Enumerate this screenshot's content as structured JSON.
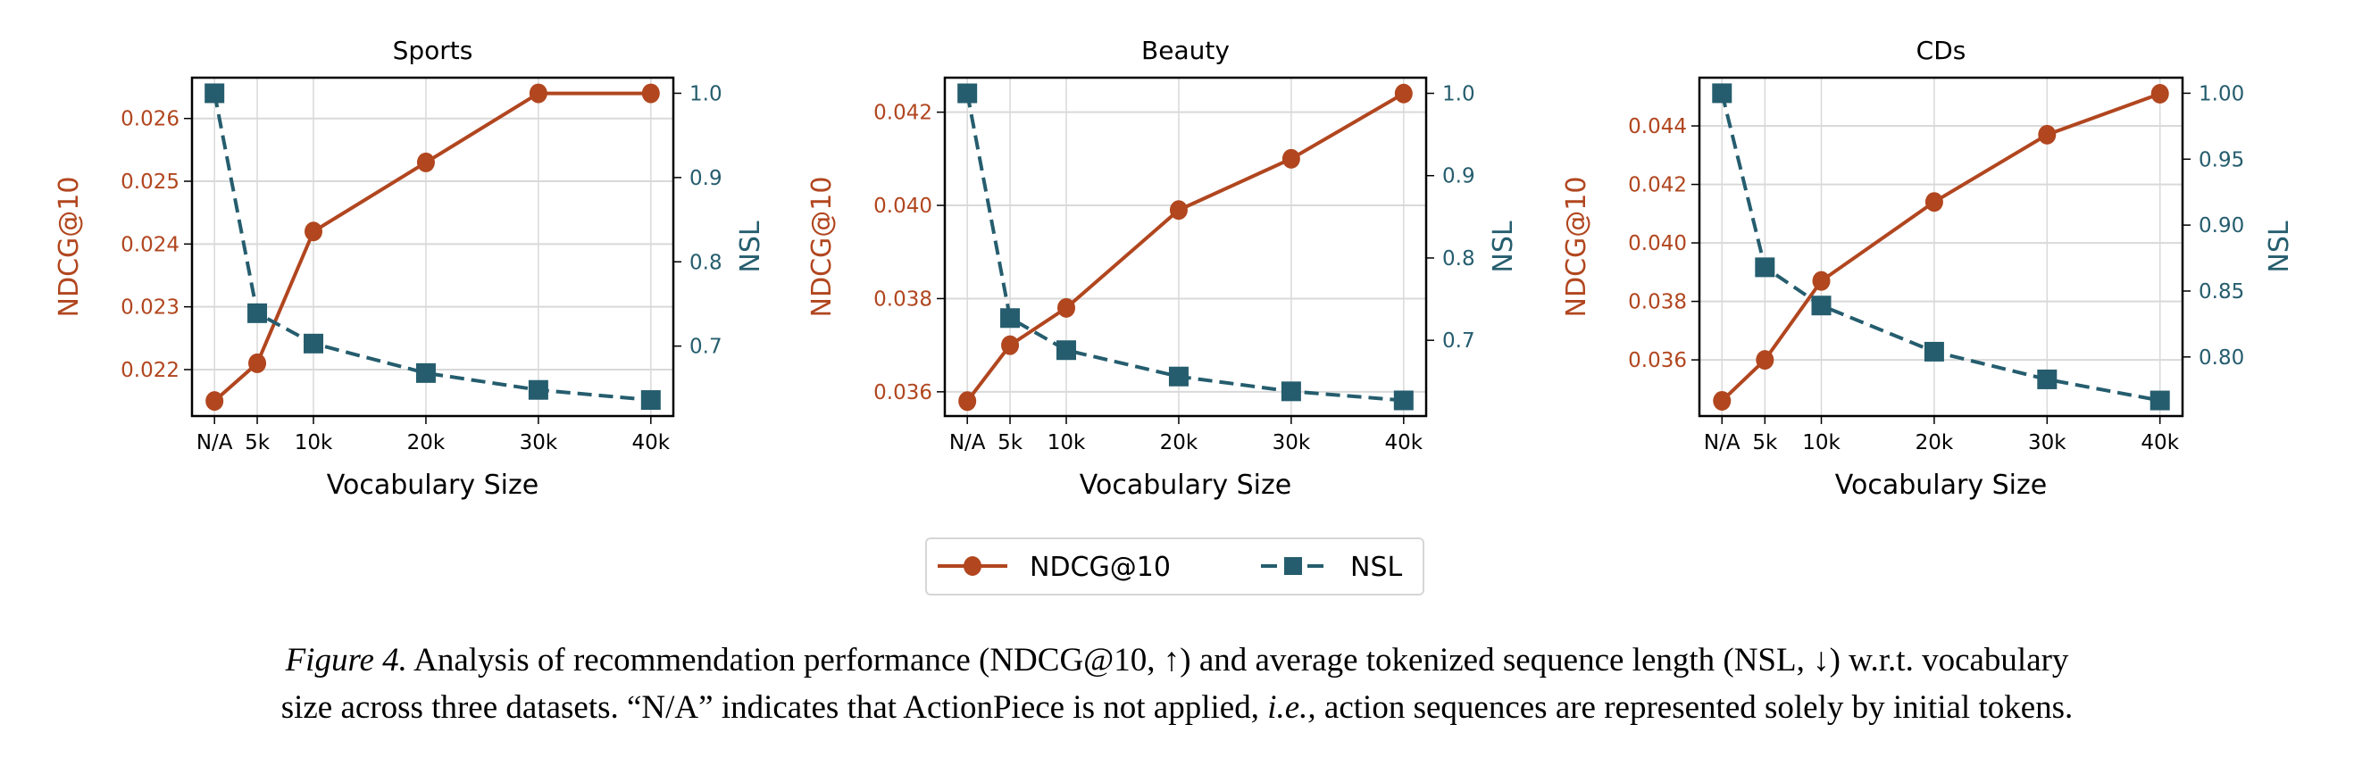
{
  "colors": {
    "ndcg": "#b1461f",
    "nsl": "#255d6e",
    "grid": "#d9d9d9"
  },
  "legend": {
    "ndcg_label": "NDCG@10",
    "nsl_label": "NSL"
  },
  "caption": {
    "figure_label": "Figure 4.",
    "line1": "Analysis of recommendation performance (NDCG@10, ↑) and average tokenized sequence length (NSL, ↓) w.r.t. vocabulary",
    "line2_a": "size across three datasets. “N/A” indicates that ActionPiece is not applied,",
    "line2_ie": "i.e.,",
    "line2_b": "action sequences are represented solely by initial tokens."
  },
  "chart_data": [
    {
      "type": "line",
      "title": "Sports",
      "xlabel": "Vocabulary Size",
      "ylabel": "NDCG@10",
      "y2label": "NSL",
      "categories": [
        "N/A",
        "5k",
        "10k",
        "20k",
        "30k",
        "40k"
      ],
      "x": [
        1.2,
        5,
        10,
        20,
        30,
        40
      ],
      "xlim": [
        -0.8,
        42
      ],
      "ylim": [
        0.02126,
        0.02665
      ],
      "y2lim": [
        0.617,
        1.0185
      ],
      "yticks": [
        0.022,
        0.023,
        0.024,
        0.025,
        0.026
      ],
      "yticklabels": [
        "0.022",
        "0.023",
        "0.024",
        "0.025",
        "0.026"
      ],
      "y2ticks": [
        0.7,
        0.8,
        0.9,
        1.0
      ],
      "y2ticklabels": [
        "0.7",
        "0.8",
        "0.9",
        "1.0"
      ],
      "series": [
        {
          "name": "NDCG@10",
          "axis": "left",
          "values": [
            0.0215,
            0.0221,
            0.0242,
            0.0253,
            0.0264,
            0.0264
          ]
        },
        {
          "name": "NSL",
          "axis": "right",
          "values": [
            1.0,
            0.739,
            0.703,
            0.668,
            0.648,
            0.636
          ]
        }
      ],
      "grid": true
    },
    {
      "type": "line",
      "title": "Beauty",
      "xlabel": "Vocabulary Size",
      "ylabel": "NDCG@10",
      "y2label": "NSL",
      "categories": [
        "N/A",
        "5k",
        "10k",
        "20k",
        "30k",
        "40k"
      ],
      "x": [
        1.2,
        5,
        10,
        20,
        30,
        40
      ],
      "xlim": [
        -0.8,
        42
      ],
      "ylim": [
        0.03548,
        0.04274
      ],
      "y2lim": [
        0.608,
        1.019
      ],
      "yticks": [
        0.036,
        0.038,
        0.04,
        0.042
      ],
      "yticklabels": [
        "0.036",
        "0.038",
        "0.040",
        "0.042"
      ],
      "y2ticks": [
        0.7,
        0.8,
        0.9,
        1.0
      ],
      "y2ticklabels": [
        "0.7",
        "0.8",
        "0.9",
        "1.0"
      ],
      "series": [
        {
          "name": "NDCG@10",
          "axis": "left",
          "values": [
            0.0358,
            0.037,
            0.0378,
            0.0399,
            0.041,
            0.0424
          ]
        },
        {
          "name": "NSL",
          "axis": "right",
          "values": [
            1.0,
            0.727,
            0.688,
            0.656,
            0.638,
            0.627
          ]
        }
      ],
      "grid": true
    },
    {
      "type": "line",
      "title": "CDs",
      "xlabel": "Vocabulary Size",
      "ylabel": "NDCG@10",
      "y2label": "NSL",
      "categories": [
        "N/A",
        "5k",
        "10k",
        "20k",
        "30k",
        "40k"
      ],
      "x": [
        1.2,
        5,
        10,
        20,
        30,
        40
      ],
      "xlim": [
        -0.8,
        42
      ],
      "ylim": [
        0.03408,
        0.04565
      ],
      "y2lim": [
        0.7552,
        1.0118
      ],
      "yticks": [
        0.036,
        0.038,
        0.04,
        0.042,
        0.044
      ],
      "yticklabels": [
        "0.036",
        "0.038",
        "0.040",
        "0.042",
        "0.044"
      ],
      "y2ticks": [
        0.8,
        0.85,
        0.9,
        0.95,
        1.0
      ],
      "y2ticklabels": [
        "0.80",
        "0.85",
        "0.90",
        "0.95",
        "1.00"
      ],
      "series": [
        {
          "name": "NDCG@10",
          "axis": "left",
          "values": [
            0.0346,
            0.036,
            0.0387,
            0.0414,
            0.0437,
            0.0451
          ]
        },
        {
          "name": "NSL",
          "axis": "right",
          "values": [
            1.0,
            0.868,
            0.839,
            0.804,
            0.783,
            0.767
          ]
        }
      ],
      "grid": true
    }
  ]
}
